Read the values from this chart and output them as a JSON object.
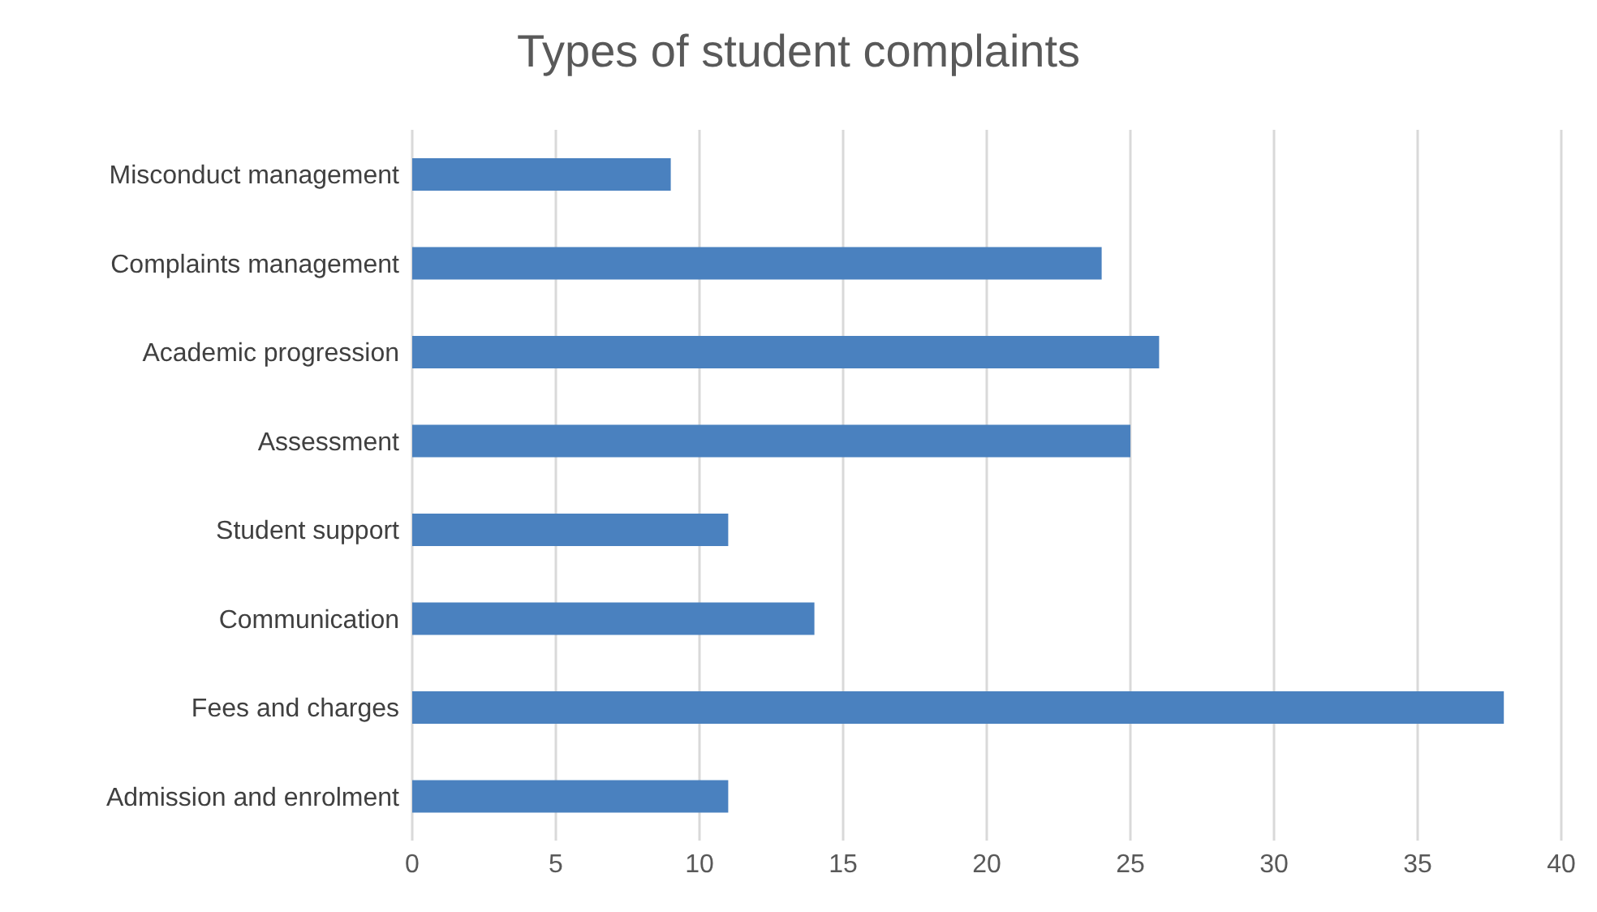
{
  "chart_data": {
    "type": "bar",
    "orientation": "horizontal",
    "title": "Types of student complaints",
    "categories": [
      "Misconduct management",
      "Complaints management",
      "Academic progression",
      "Assessment",
      "Student support",
      "Communication",
      "Fees and charges",
      "Admission and enrolment"
    ],
    "values": [
      9,
      24,
      26,
      25,
      11,
      14,
      38,
      11
    ],
    "color": "#4a81bf",
    "xlim": [
      0,
      40
    ],
    "xticks": [
      0,
      5,
      10,
      15,
      20,
      25,
      30,
      35,
      40
    ],
    "grid": "x",
    "legend": false
  }
}
